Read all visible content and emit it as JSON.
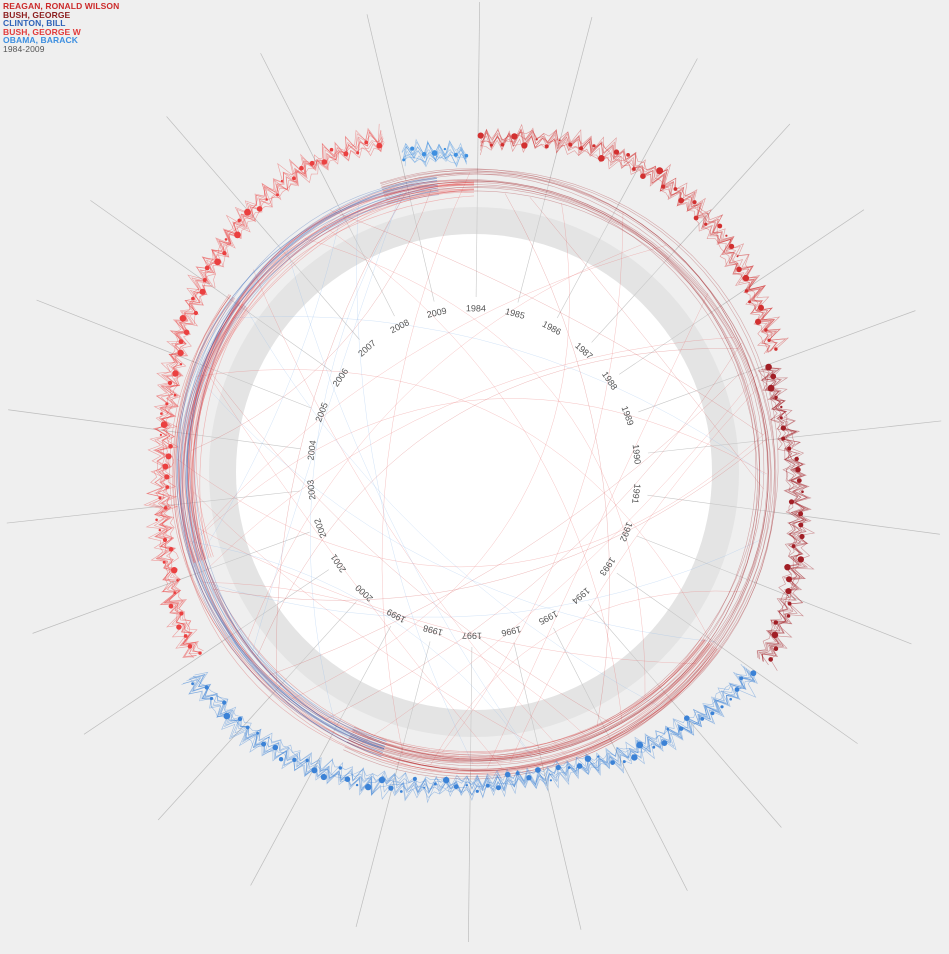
{
  "legend": {
    "entries": [
      {
        "label": "REAGAN, RONALD WILSON",
        "color": "#cc2a2a"
      },
      {
        "label": "BUSH, GEORGE",
        "color": "#8c1d1d"
      },
      {
        "label": "CLINTON, BILL",
        "color": "#2e62b8"
      },
      {
        "label": "BUSH, GEORGE W",
        "color": "#e23b3b"
      },
      {
        "label": "OBAMA, BARACK",
        "color": "#3d8fe0"
      }
    ],
    "range": "1984-2009"
  },
  "chart_data": {
    "type": "radial-line",
    "years": [
      "1984",
      "1985",
      "1986",
      "1987",
      "1988",
      "1989",
      "1990",
      "1991",
      "1992",
      "1993",
      "1994",
      "1995",
      "1996",
      "1997",
      "1998",
      "1999",
      "2000",
      "2001",
      "2002",
      "2003",
      "2004",
      "2005",
      "2006",
      "2007",
      "2008",
      "2009"
    ],
    "series": [
      {
        "name": "REAGAN, RONALD WILSON",
        "color": "#d23030",
        "start_year": 1984,
        "end_year": 1988.9
      },
      {
        "name": "BUSH, GEORGE",
        "color": "#a11f26",
        "start_year": 1989,
        "end_year": 1992.9
      },
      {
        "name": "CLINTON, BILL",
        "color": "#3b82d6",
        "start_year": 1993,
        "end_year": 2000.9
      },
      {
        "name": "BUSH, GEORGE W",
        "color": "#ea4040",
        "start_year": 2001,
        "end_year": 2008.9
      },
      {
        "name": "OBAMA, BARACK",
        "color": "#3d8fe0",
        "start_year": 2009,
        "end_year": 2009.9
      }
    ]
  }
}
